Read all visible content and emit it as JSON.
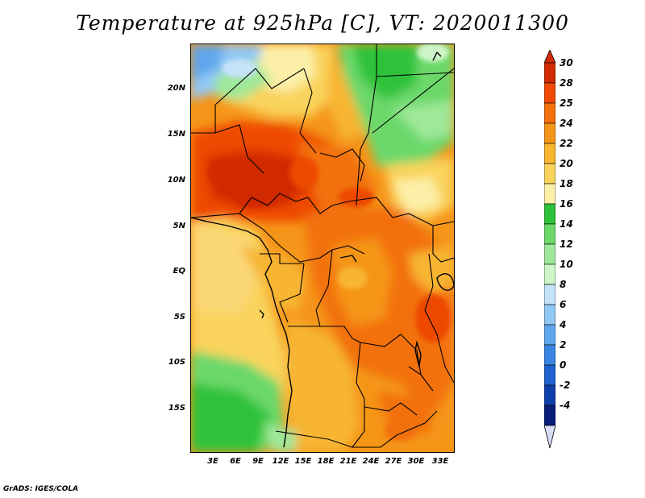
{
  "title": "Temperature at 925hPa [C], VT: 2020011300",
  "credit": "GrADS: IGES/COLA",
  "lat_labels": [
    "20N",
    "15N",
    "10N",
    "5N",
    "EQ",
    "5S",
    "10S",
    "15S"
  ],
  "lon_labels": [
    "3E",
    "6E",
    "9E",
    "12E",
    "15E",
    "18E",
    "21E",
    "24E",
    "27E",
    "30E",
    "33E"
  ],
  "colorbar": {
    "labels": [
      "30",
      "28",
      "25",
      "24",
      "22",
      "20",
      "18",
      "16",
      "14",
      "12",
      "10",
      "8",
      "6",
      "4",
      "2",
      "0",
      "-2",
      "-4"
    ],
    "colors_top_to_bottom": [
      "#d22a05",
      "#ee4a06",
      "#f2710d",
      "#f59519",
      "#f7b530",
      "#f9d35c",
      "#fcf0a8",
      "#2ec23a",
      "#6cd86a",
      "#9fe899",
      "#cef5c8",
      "#c4e2f8",
      "#92c8f4",
      "#5fa6ec",
      "#3a86e2",
      "#1e62d0",
      "#0e3eaa",
      "#081e78"
    ],
    "over_color": "#d22a05",
    "under_color": "#d7dcf7"
  }
}
